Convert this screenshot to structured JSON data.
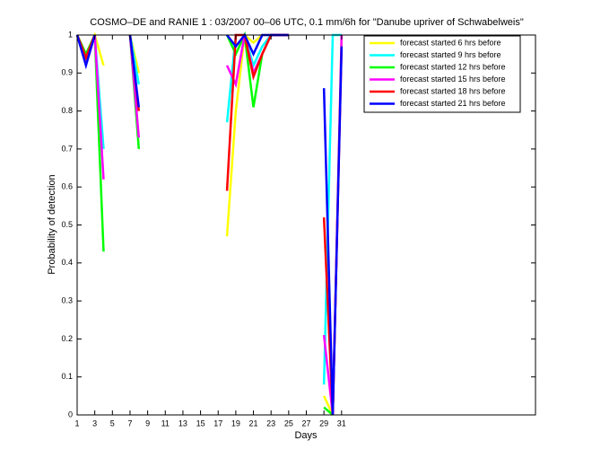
{
  "chart_data": {
    "type": "line",
    "title": "COSMO–DE and RANIE 1 : 03/2007 00–06 UTC, 0.1 mm/6h for \"Danube upriver of Schwabelweis\"",
    "x_label": "Days",
    "y_label": "Probability of detection",
    "x": [
      1,
      2,
      3,
      4,
      5,
      6,
      7,
      8,
      9,
      10,
      11,
      12,
      13,
      14,
      15,
      16,
      17,
      18,
      19,
      20,
      21,
      22,
      23,
      24,
      25,
      26,
      27,
      28,
      29,
      30,
      31
    ],
    "xlim": [
      1,
      53
    ],
    "xticks": [
      1,
      3,
      5,
      7,
      9,
      11,
      13,
      15,
      17,
      19,
      21,
      23,
      25,
      27,
      29,
      31
    ],
    "ylim": [
      0,
      1
    ],
    "yticks": [
      0,
      0.1,
      0.2,
      0.3,
      0.4,
      0.5,
      0.6,
      0.7,
      0.8,
      0.9,
      1
    ],
    "legend_position": "upper right",
    "series": [
      {
        "name": "forecast started 6 hrs before",
        "color": "#ffff00",
        "values": [
          1,
          0.95,
          1,
          0.92,
          null,
          null,
          1,
          0.9,
          null,
          null,
          null,
          null,
          null,
          null,
          null,
          null,
          null,
          0.47,
          0.8,
          1,
          0.98,
          1,
          1,
          1,
          1,
          null,
          null,
          null,
          0.05,
          0,
          1
        ]
      },
      {
        "name": "forecast started 9 hrs before",
        "color": "#00ffff",
        "values": [
          1,
          0.94,
          1,
          0.7,
          null,
          null,
          1,
          0.87,
          null,
          null,
          null,
          null,
          null,
          null,
          null,
          null,
          null,
          0.77,
          1,
          1,
          0.92,
          0.97,
          1,
          1,
          1,
          null,
          null,
          null,
          0.08,
          1,
          1
        ]
      },
      {
        "name": "forecast started 12 hrs before",
        "color": "#00ff00",
        "values": [
          1,
          0.95,
          1,
          0.43,
          null,
          null,
          1,
          0.7,
          null,
          null,
          null,
          null,
          null,
          null,
          null,
          null,
          null,
          1,
          0.95,
          1,
          0.81,
          0.95,
          1,
          1,
          1,
          null,
          null,
          null,
          0.02,
          0,
          null
        ]
      },
      {
        "name": "forecast started 15 hrs before",
        "color": "#ff00ff",
        "values": [
          1,
          0.94,
          1,
          0.62,
          null,
          null,
          1,
          0.73,
          null,
          null,
          null,
          null,
          null,
          null,
          null,
          null,
          null,
          0.92,
          0.87,
          1,
          0.9,
          0.95,
          1,
          1,
          1,
          null,
          null,
          null,
          0.21,
          0,
          1
        ]
      },
      {
        "name": "forecast started 18 hrs before",
        "color": "#ff0000",
        "values": [
          1,
          0.94,
          1,
          null,
          null,
          null,
          1,
          0.8,
          null,
          null,
          null,
          null,
          null,
          null,
          null,
          null,
          null,
          0.59,
          1,
          1,
          0.89,
          0.95,
          1,
          1,
          1,
          null,
          null,
          null,
          0.52,
          0,
          0.97
        ]
      },
      {
        "name": "forecast started 21 hrs before",
        "color": "#0000ff",
        "values": [
          1,
          0.92,
          1,
          null,
          null,
          null,
          1,
          0.81,
          null,
          null,
          null,
          null,
          null,
          null,
          null,
          null,
          null,
          1,
          0.97,
          1,
          0.95,
          1,
          1,
          1,
          1,
          null,
          null,
          null,
          0.86,
          0,
          0.97
        ]
      }
    ]
  }
}
